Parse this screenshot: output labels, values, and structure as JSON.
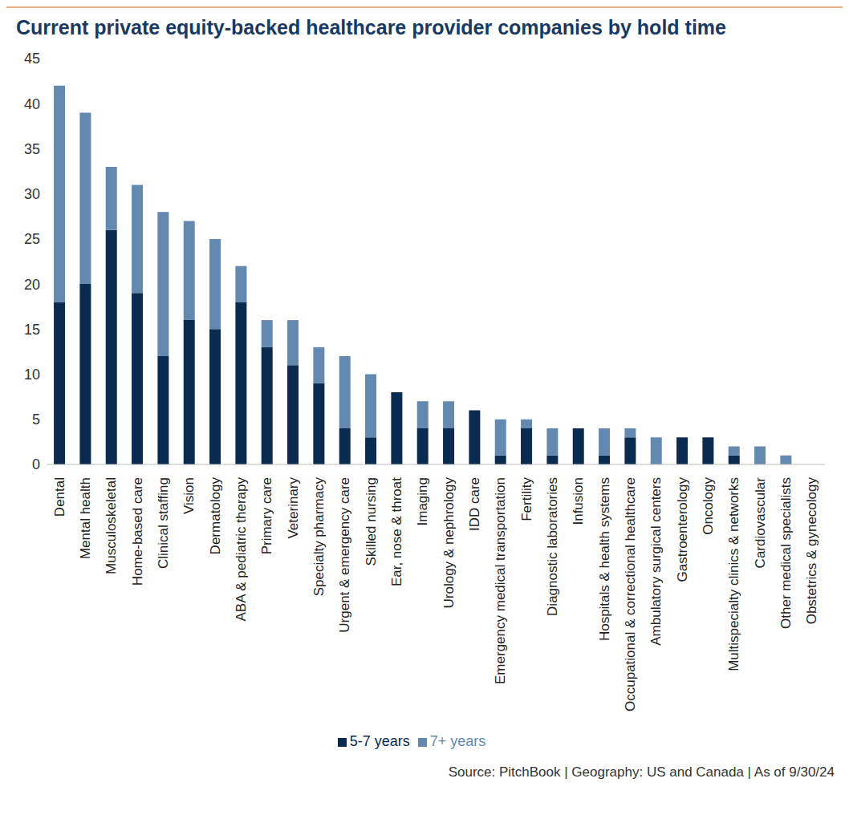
{
  "chart_data": {
    "type": "bar",
    "title": "Current private equity-backed healthcare provider companies by hold time",
    "source": "Source: PitchBook | Geography: US and Canada | As of 9/30/24",
    "categories": [
      "Dental",
      "Mental health",
      "Musculoskeletal",
      "Home-based care",
      "Clinical staffing",
      "Vision",
      "Dermatology",
      "ABA & pediatric therapy",
      "Primary care",
      "Veterinary",
      "Specialty pharmacy",
      "Urgent & emergency care",
      "Skilled nursing",
      "Ear, nose & throat",
      "Imaging",
      "Urology & nephrology",
      "IDD care",
      "Emergency medical transportation",
      "Fertility",
      "Diagnostic laboratories",
      "Infusion",
      "Hospitals & health systems",
      "Occupational & correctional healthcare",
      "Ambulatory surgical centers",
      "Gastroenterology",
      "Oncology",
      "Multispecialty clinics & networks",
      "Cardiovascular",
      "Other medical specialists",
      "Obstetrics & gynecology"
    ],
    "series": [
      {
        "name": "5-7 years",
        "color": "#0b2a50",
        "values": [
          18,
          20,
          26,
          19,
          12,
          16,
          15,
          18,
          13,
          11,
          9,
          4,
          3,
          8,
          4,
          4,
          6,
          1,
          4,
          1,
          4,
          1,
          3,
          0,
          3,
          3,
          1,
          0,
          0,
          0
        ]
      },
      {
        "name": "7+ years",
        "color": "#6489b0",
        "values": [
          24,
          19,
          7,
          12,
          16,
          11,
          10,
          4,
          3,
          5,
          4,
          8,
          7,
          0,
          3,
          3,
          0,
          4,
          1,
          3,
          0,
          3,
          1,
          3,
          0,
          0,
          1,
          2,
          1,
          0
        ]
      }
    ],
    "stacked": true,
    "ylim": [
      0,
      45
    ],
    "yticks": [
      0,
      5,
      10,
      15,
      20,
      25,
      30,
      35,
      40,
      45
    ],
    "grid": false,
    "legend": "bottom"
  }
}
